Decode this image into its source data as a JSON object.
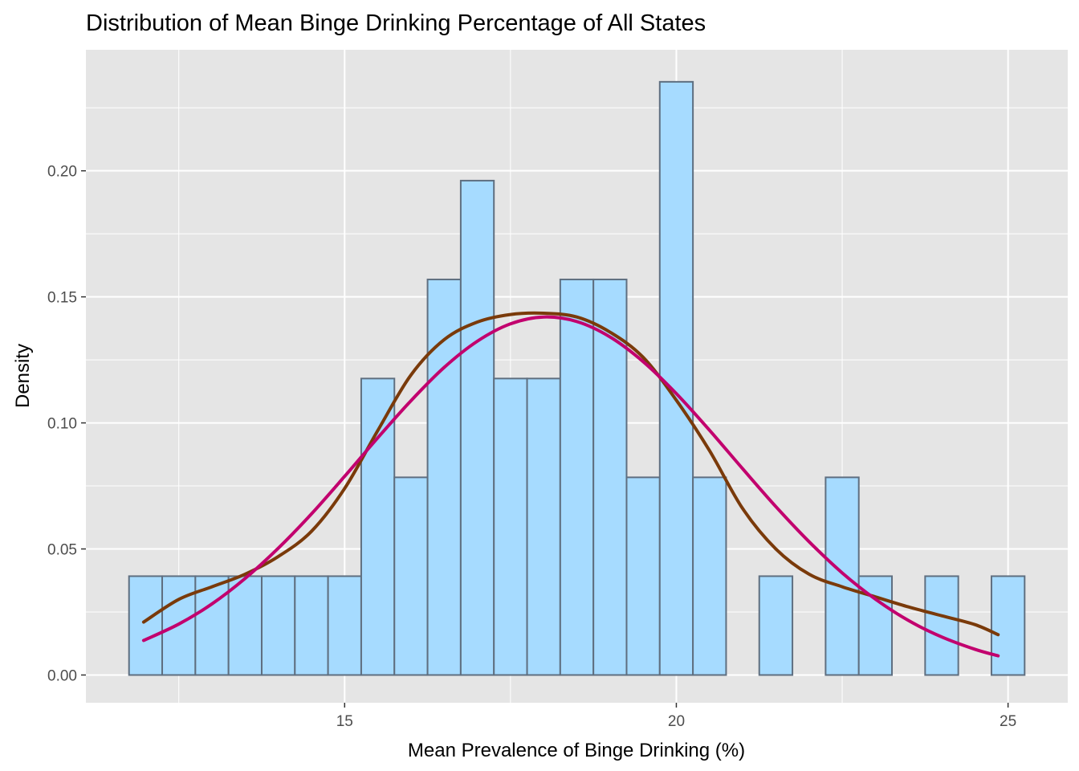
{
  "chart_data": {
    "type": "histogram",
    "title": "Distribution of Mean Binge Drinking Percentage of All States",
    "xlabel": "Mean Prevalence of Binge Drinking (%)",
    "ylabel": "Density",
    "xlim": [
      11.1,
      25.9
    ],
    "ylim": [
      -0.011,
      0.248
    ],
    "x_ticks": [
      15,
      20,
      25
    ],
    "x_tick_labels": [
      "15",
      "20",
      "25"
    ],
    "y_ticks": [
      0,
      0.05,
      0.1,
      0.15,
      0.2
    ],
    "y_tick_labels": [
      "0.00",
      "0.05",
      "0.10",
      "0.15",
      "0.20"
    ],
    "grid": true,
    "bin_width": 0.5,
    "bins": {
      "start": [
        11.75,
        12.25,
        12.75,
        13.25,
        13.75,
        14.25,
        14.75,
        15.25,
        15.75,
        16.25,
        16.75,
        17.25,
        17.75,
        18.25,
        18.75,
        19.25,
        19.75,
        20.25,
        20.75,
        21.25,
        21.75,
        22.25,
        22.75,
        23.25,
        23.75,
        24.25,
        24.75
      ],
      "density": [
        0.0392,
        0.0392,
        0.0392,
        0.0392,
        0.0392,
        0.0392,
        0.0392,
        0.1176,
        0.0784,
        0.1569,
        0.1961,
        0.1176,
        0.1176,
        0.1569,
        0.1569,
        0.0784,
        0.2353,
        0.0784,
        0,
        0.0392,
        0,
        0.0784,
        0.0392,
        0,
        0.0392,
        0,
        0.0392
      ]
    },
    "colors": {
      "bar_fill": "#a6dbff",
      "bar_stroke": "#5f6f80",
      "kde": "#7a3a0a",
      "normal": "#c2006e",
      "panel": "#e5e5e5",
      "grid": "#ffffff"
    },
    "series": [
      {
        "kind": "density-curve",
        "color": "#7a3a0a",
        "x": [
          11.97,
          12.5,
          13,
          13.5,
          14,
          14.5,
          15,
          15.5,
          16,
          16.5,
          17,
          17.5,
          18,
          18.5,
          19,
          19.5,
          20,
          20.5,
          21,
          21.5,
          22,
          22.5,
          23,
          23.5,
          24,
          24.5,
          24.85
        ],
        "y": [
          0.021,
          0.03,
          0.035,
          0.04,
          0.047,
          0.057,
          0.074,
          0.097,
          0.119,
          0.133,
          0.14,
          0.143,
          0.1435,
          0.142,
          0.136,
          0.126,
          0.109,
          0.089,
          0.066,
          0.05,
          0.04,
          0.035,
          0.031,
          0.027,
          0.0235,
          0.02,
          0.016
        ]
      },
      {
        "kind": "normal-curve",
        "color": "#c2006e",
        "x": [
          11.97,
          12.5,
          13,
          13.5,
          14,
          14.5,
          15,
          15.5,
          16,
          16.5,
          17,
          17.5,
          18,
          18.5,
          19,
          19.5,
          20,
          20.5,
          21,
          21.5,
          22,
          22.5,
          23,
          23.5,
          24,
          24.5,
          24.85
        ],
        "y": [
          0.0137,
          0.0202,
          0.0282,
          0.0383,
          0.0503,
          0.0639,
          0.0788,
          0.0941,
          0.1088,
          0.122,
          0.1324,
          0.1393,
          0.142,
          0.1402,
          0.1341,
          0.1243,
          0.1116,
          0.0971,
          0.0818,
          0.0668,
          0.0529,
          0.0405,
          0.0301,
          0.0216,
          0.0151,
          0.0102,
          0.0076
        ]
      }
    ]
  }
}
